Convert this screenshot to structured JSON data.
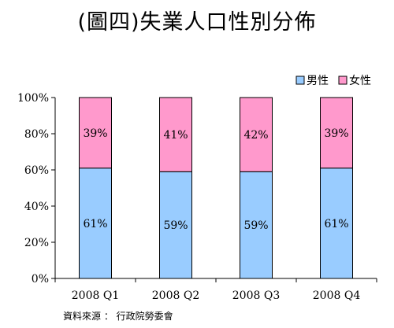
{
  "chart_data": {
    "type": "bar",
    "stacked": true,
    "title": "(圖四)失業人口性別分佈",
    "categories": [
      "2008 Q1",
      "2008 Q2",
      "2008 Q3",
      "2008 Q4"
    ],
    "series": [
      {
        "name": "男性",
        "values": [
          61,
          59,
          59,
          61
        ],
        "labels": [
          "61%",
          "59%",
          "59%",
          "61%"
        ]
      },
      {
        "name": "女性",
        "values": [
          39,
          41,
          42,
          39
        ],
        "labels": [
          "39%",
          "41%",
          "42%",
          "39%"
        ]
      }
    ],
    "ylim": [
      0,
      100
    ],
    "yticks": [
      "0%",
      "20%",
      "40%",
      "60%",
      "80%",
      "100%"
    ],
    "xlabel": "",
    "ylabel": "",
    "legend_position": "top-right",
    "grid": false
  },
  "colors": {
    "male": "#99ccff",
    "female": "#ff99cc",
    "stroke": "#000000"
  },
  "source": "資料來源 ： 行政院勞委會"
}
